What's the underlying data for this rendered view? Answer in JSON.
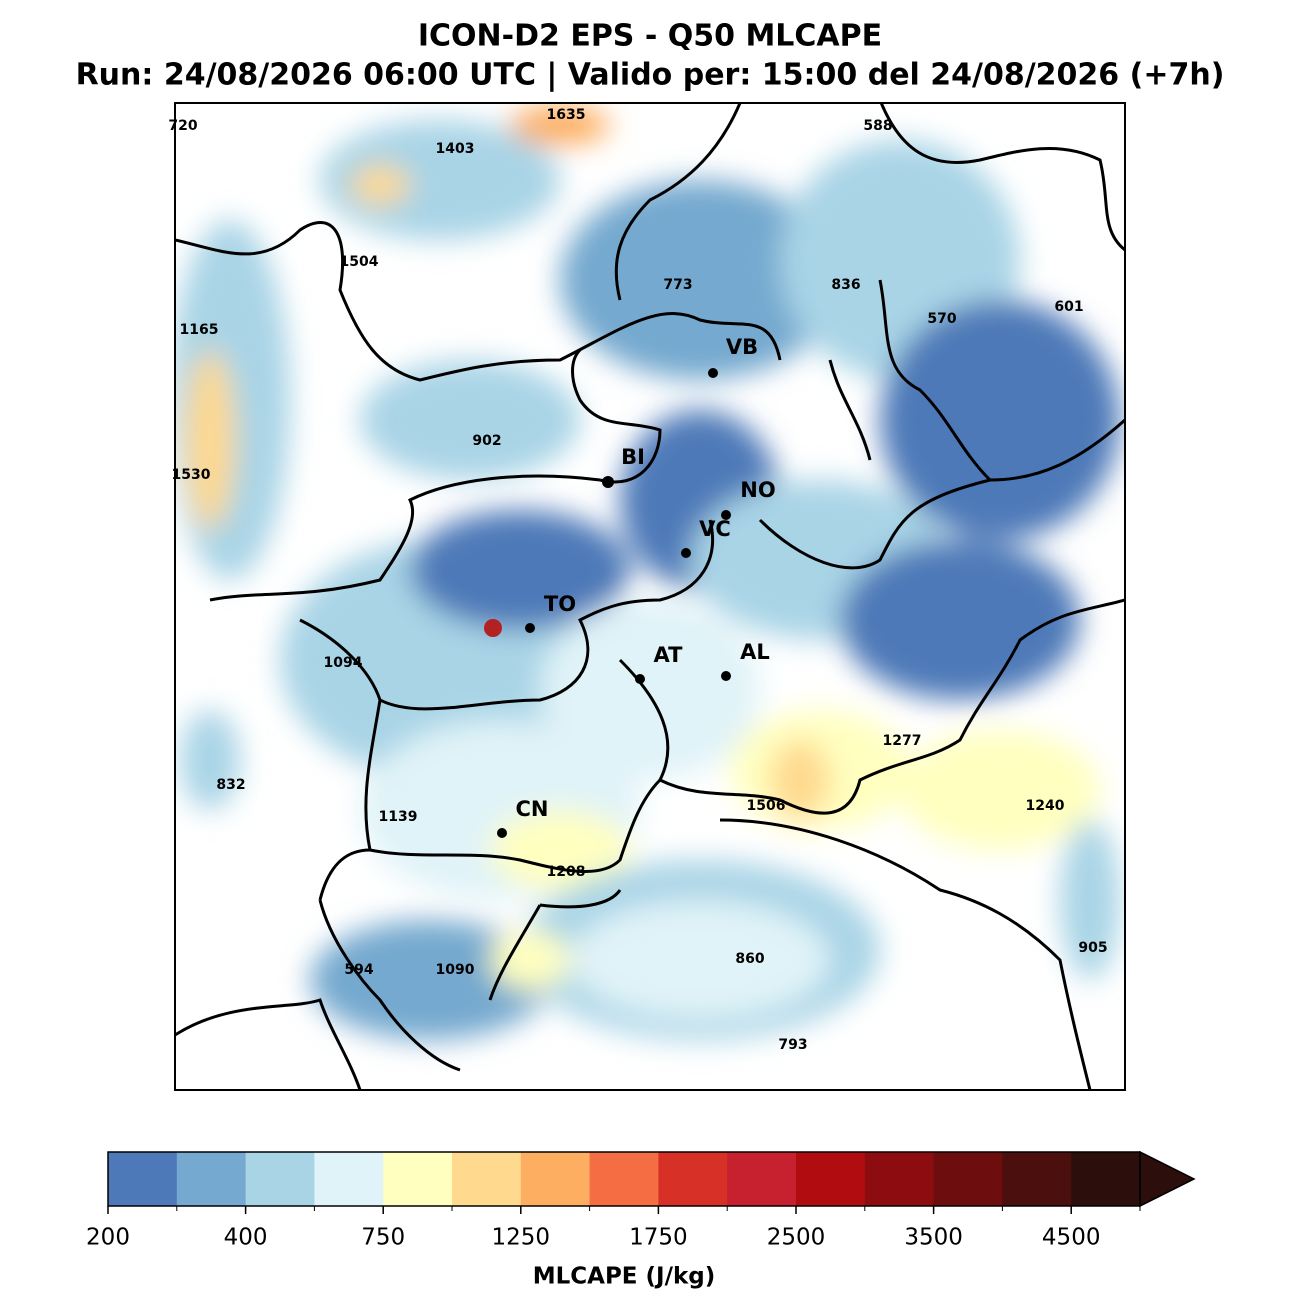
{
  "title": "ICON-D2 EPS - Q50 MLCAPE",
  "subtitle": "Run: 24/08/2026 06:00 UTC | Valido per: 15:00 del 24/08/2026 (+7h)",
  "cities": [
    "VB",
    "BI",
    "NO",
    "VC",
    "TO",
    "AT",
    "AL",
    "CN"
  ],
  "annotations": [
    720,
    1635,
    588,
    1403,
    1504,
    773,
    836,
    570,
    601,
    1165,
    902,
    1530,
    1094,
    1277,
    832,
    1506,
    1240,
    1139,
    1208,
    905,
    860,
    594,
    1090,
    793
  ],
  "colorbar": {
    "bounds": [
      200,
      300,
      400,
      500,
      750,
      1000,
      1250,
      1500,
      1750,
      2000,
      2500,
      3000,
      3500,
      4000,
      4500,
      5000
    ],
    "colors": [
      "#4e79b8",
      "#75a9cf",
      "#a9d4e6",
      "#e0f3f8",
      "#ffffbf",
      "#fed98e",
      "#fdae61",
      "#f46d43",
      "#d73027",
      "#c7202f",
      "#b10c0f",
      "#8d0c10",
      "#6e0d0e",
      "#4b0f0d",
      "#2c0f0c"
    ],
    "ticks": [
      200,
      400,
      750,
      1250,
      1750,
      2500,
      3500,
      4500
    ],
    "extend": "max",
    "label": "MLCAPE (J/kg)"
  }
}
